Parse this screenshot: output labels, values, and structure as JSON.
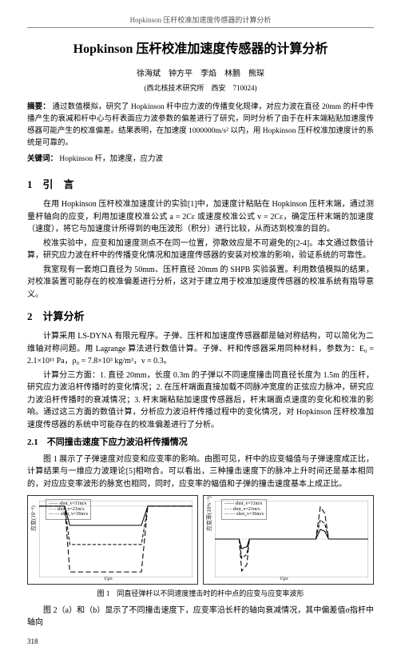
{
  "header": "Hopkinson 压杆校准加速度传感器的计算分析",
  "title": "Hopkinson 压杆校准加速度传感器的计算分析",
  "authors": "徐海斌　钟方平　李焰　林鹏　熊琛",
  "affiliation": "(西北核技术研究所　西安　710024)",
  "abstract_label": "摘要：",
  "abstract_text": "通过数值模拟，研究了 Hopkinson 杆中应力波的传播变化规律，对应力波在直径 20mm 的杆中传播产生的衰减和杆中心与杆表面应力波参数的偏差进行了研究，同时分析了由于在杆末端粘贴加速度传感器可能产生的校准偏差。结果表明，在加速度 1000000m/s² 以内，用 Hopkinson 压杆校准加速度计的系统是可靠的。",
  "keywords_label": "关键词：",
  "keywords_text": "Hopkinson 杆，加速度，应力波",
  "sec1_h": "1　引　言",
  "sec1_p1": "在用 Hopkinson 压杆校准加速度计的实验[1]中，加速度计粘贴在 Hopkinson 压杆末端，通过测量杆轴向的应变，利用加速度校准公式 a = 2Cε 或速度校准公式 v = 2Cε，确定压杆末端的加速度（速度），将它与加速度计所得到的电压波形（积分）进行比较，从而达到校准的目的。",
  "sec1_p2": "校准实验中，应变和加速度测点不在同一位置，弥散效应是不可避免的[2-4]。本文通过数值计算，研究应力波在杆中的传播变化情况和加速度传感器的安装对校准的影响，验证系统的可靠性。",
  "sec1_p3": "我室现有一套炮口直径为 50mm、压杆直径 20mm 的 SHPB 实验装置。利用数值模拟的结果，对校准装置可能存在的校准偏差进行分析，这对于建立用于校准加速度传感器的校准系统有指导意义。",
  "sec2_h": "2　计算分析",
  "sec2_p1": "计算采用 LS-DYNA 有限元程序。子弹、压杆和加速度传感器都是轴对称结构，可以简化为二维轴对称问题。用 Lagrange 算法进行数值计算。子弹、杆和传感器采用同种材料，参数为：E₀ = 2.1×10¹¹ Pa，ρ₀ = 7.8×10³ kg/m³，ν = 0.3。",
  "sec2_p2": "计算分三方面：1. 直径 20mm，长度 0.3m 的子弹以不同速度撞击同直径长度为 1.5m 的压杆，研究应力波沿杆传播时的变化情况；2. 在压杆端面直接加载不同脉冲宽度的正弦应力脉冲，研究应力波沿杆传播时的衰减情况；3. 杆末端粘贴加速度传感器后，杆末端面点速度的变化和校准的影响。通过这三方面的数值计算，分析应力波沿杆传播过程中的变化情况，对 Hopkinson 压杆校准加速度传感器的系统中可能存在的校准偏差进行了分析。",
  "sec21_h": "2.1　不同撞击速度下应力波沿杆传播情况",
  "sec21_p1": "图 1 展示了子弹速度对应变和应变率的影响。由图可见，杆中的应变幅值与子弹速度成正比，计算结果与一维应力波理论[5]相吻合。可以看出，三种撞击速度下的脉冲上升时间还是基本相同的，对应应变率波形的脉宽也相同，同时，应变率的幅值和子弹的撞击速度基本上成正比。",
  "fig1_caption": "图 1　同直径弹杆以不同速度撞击时的杆中点的应变与应变率波形",
  "fig1_legend_1": "—— shot_v=11m/s",
  "fig1_legend_2": "- - - shot_v=21m/s",
  "fig1_legend_3": "— — shot_v=36m/s",
  "fig1_axis_y_left": "应变(10⁻⁴)",
  "fig1_axis_y_right": "应变率(10⁴s⁻¹)",
  "fig1_axis_x": "t/μs",
  "chart_left": {
    "type": "line",
    "xlim": [
      0,
      240
    ],
    "ylim": [
      -26,
      2
    ],
    "series": [
      {
        "color": "#000000",
        "dash": "none",
        "points": [
          [
            0,
            0
          ],
          [
            40,
            0
          ],
          [
            48,
            -7
          ],
          [
            55,
            -7
          ],
          [
            58,
            -7
          ],
          [
            160,
            -7
          ],
          [
            170,
            0
          ],
          [
            240,
            0
          ]
        ]
      },
      {
        "color": "#000000",
        "dash": "4,2",
        "points": [
          [
            0,
            0
          ],
          [
            40,
            0
          ],
          [
            48,
            -14
          ],
          [
            55,
            -14
          ],
          [
            160,
            -14
          ],
          [
            170,
            0
          ],
          [
            240,
            0
          ]
        ]
      },
      {
        "color": "#000000",
        "dash": "6,3",
        "points": [
          [
            0,
            0
          ],
          [
            40,
            0
          ],
          [
            48,
            -24
          ],
          [
            55,
            -24
          ],
          [
            160,
            -24
          ],
          [
            170,
            0
          ],
          [
            240,
            0
          ]
        ]
      }
    ],
    "grid_color": "#cccccc",
    "background": "#ffffff"
  },
  "chart_right": {
    "type": "line",
    "xlim": [
      0,
      240
    ],
    "ylim": [
      -6,
      6
    ],
    "series": [
      {
        "color": "#000000",
        "dash": "none",
        "points": [
          [
            0,
            0
          ],
          [
            38,
            0
          ],
          [
            42,
            -1.5
          ],
          [
            50,
            -1.2
          ],
          [
            54,
            0
          ],
          [
            158,
            0
          ],
          [
            165,
            1.5
          ],
          [
            172,
            1.2
          ],
          [
            178,
            0
          ],
          [
            240,
            0
          ]
        ]
      },
      {
        "color": "#000000",
        "dash": "4,2",
        "points": [
          [
            0,
            0
          ],
          [
            38,
            0
          ],
          [
            42,
            -3
          ],
          [
            50,
            -2.4
          ],
          [
            54,
            0
          ],
          [
            158,
            0
          ],
          [
            165,
            3
          ],
          [
            172,
            2.4
          ],
          [
            178,
            0
          ],
          [
            240,
            0
          ]
        ]
      },
      {
        "color": "#000000",
        "dash": "6,3",
        "points": [
          [
            0,
            0
          ],
          [
            38,
            0
          ],
          [
            42,
            -5
          ],
          [
            50,
            -4
          ],
          [
            54,
            0
          ],
          [
            158,
            0
          ],
          [
            165,
            5
          ],
          [
            172,
            4
          ],
          [
            178,
            0
          ],
          [
            240,
            0
          ]
        ]
      }
    ],
    "grid_color": "#cccccc",
    "background": "#ffffff"
  },
  "sec21_p2": "图 2（a）和（b）显示了不同撞击速度下，应变率沿长杆的轴向衰减情况，其中偏差值σ指杆中轴向",
  "page_number": "318"
}
